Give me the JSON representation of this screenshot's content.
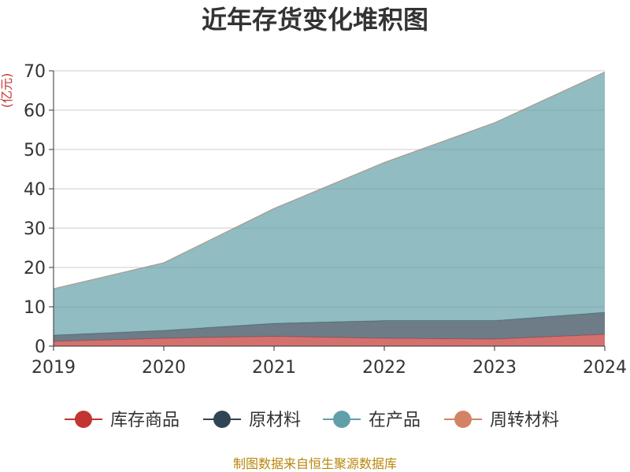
{
  "chart_data": {
    "type": "area",
    "stacked": true,
    "title": "近年存货变化堆积图",
    "unit_label": "(亿元)",
    "x": [
      "2019",
      "2020",
      "2021",
      "2022",
      "2023",
      "2024"
    ],
    "ylim": [
      0,
      70
    ],
    "yticks": [
      0,
      10,
      20,
      30,
      40,
      50,
      60,
      70
    ],
    "grid": true,
    "legend_position": "bottom",
    "series": [
      {
        "name": "库存商品",
        "values": [
          1.2,
          2.0,
          2.5,
          2.0,
          1.8,
          3.0
        ],
        "color": "#c23531"
      },
      {
        "name": "原材料",
        "values": [
          1.6,
          2.0,
          3.3,
          4.5,
          4.7,
          5.6
        ],
        "color": "#2f4554"
      },
      {
        "name": "在产品",
        "values": [
          11.8,
          17.2,
          29.2,
          40.2,
          50.3,
          61.1
        ],
        "color": "#61a0a8"
      },
      {
        "name": "周转材料",
        "values": [
          0,
          0,
          0,
          0,
          0,
          0
        ],
        "color": "#d48265"
      }
    ],
    "source": "制图数据来自恒生聚源数据库"
  }
}
